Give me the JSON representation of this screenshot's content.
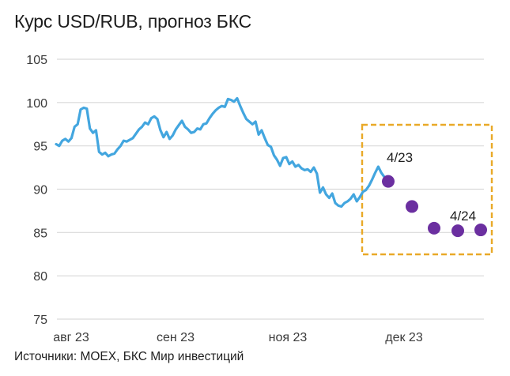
{
  "chart_data": {
    "type": "line",
    "title": "Курс USD/RUB, прогноз БКС",
    "source": "Источники: MOEX, БКС Мир инвестиций",
    "ylim": [
      75,
      105
    ],
    "y_ticks": [
      "105",
      "100",
      "95",
      "90",
      "85",
      "80",
      "75"
    ],
    "x_ticks": [
      "авг 23",
      "сен 23",
      "ноя 23",
      "дек 23"
    ],
    "grid": true,
    "colors": {
      "actual": "#43a6df",
      "forecast": "#6b2fa0",
      "highlight_box": "#e9a928",
      "grid": "#d9d9d9"
    },
    "series": [
      {
        "values": [
          95.2,
          95.0,
          95.6,
          95.8,
          95.5,
          95.9,
          97.2,
          97.5,
          99.2,
          99.4,
          99.3,
          97.0,
          96.5,
          96.8,
          94.3,
          94.0,
          94.2,
          93.8,
          94.0,
          94.1,
          94.6,
          95.0,
          95.6,
          95.5,
          95.7,
          95.9,
          96.4,
          96.9,
          97.2,
          97.7,
          97.5,
          98.2,
          98.4,
          98.1,
          96.8,
          96.0,
          96.6,
          95.8,
          96.2,
          96.9,
          97.4,
          97.9,
          97.2,
          96.9,
          96.5,
          96.6,
          97.0,
          96.9,
          97.5,
          97.6,
          98.2,
          98.7,
          99.1,
          99.4,
          99.6,
          99.5,
          100.4,
          100.3,
          100.1,
          100.5,
          99.6,
          98.8,
          98.1,
          97.8,
          97.5,
          97.8,
          96.3,
          96.8,
          95.9,
          95.1,
          94.9,
          93.9,
          93.4,
          92.7,
          93.6,
          93.7,
          92.9,
          93.2,
          92.6,
          92.8,
          92.4,
          92.2,
          92.3,
          92.0,
          92.5,
          91.8,
          89.6,
          90.2,
          89.4,
          89.0,
          89.5,
          88.4,
          88.1,
          88.0,
          88.4,
          88.6,
          88.9,
          89.4,
          88.6,
          89.1,
          89.7,
          89.9,
          90.4,
          91.1,
          91.9,
          92.6,
          91.9,
          91.4,
          91.0
        ]
      },
      {
        "categories": [
          "4/23",
          "",
          "",
          "",
          "4/24"
        ],
        "values": [
          90.9,
          88.0,
          85.5,
          85.2,
          85.3
        ]
      }
    ],
    "annotations": [
      "4/23",
      "4/24"
    ]
  }
}
